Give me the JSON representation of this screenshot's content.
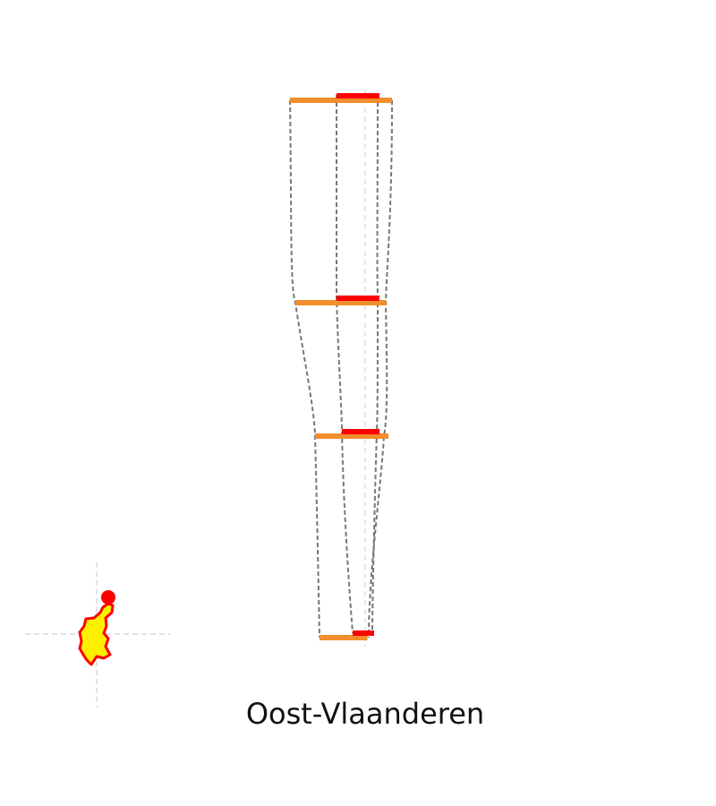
{
  "figure": {
    "region_name": "Oost-Vlaanderen",
    "colors": {
      "background": "#ffffff",
      "outline": "#777777",
      "centerline": "#d0d0d0",
      "bar_total": "#f28e2b",
      "bar_part": "#ff0000",
      "map_fill": "#ffef00",
      "map_border": "#ff0000",
      "map_crosshair": "#d0d0d0"
    },
    "levels": [
      {
        "level": 1,
        "total_width": 1.0,
        "part_width": 0.42
      },
      {
        "level": 2,
        "total_width": 0.89,
        "part_width": 0.42
      },
      {
        "level": 3,
        "total_width": 0.72,
        "part_width": 0.37
      },
      {
        "level": 4,
        "total_width": 0.47,
        "part_width": 0.21
      }
    ]
  }
}
